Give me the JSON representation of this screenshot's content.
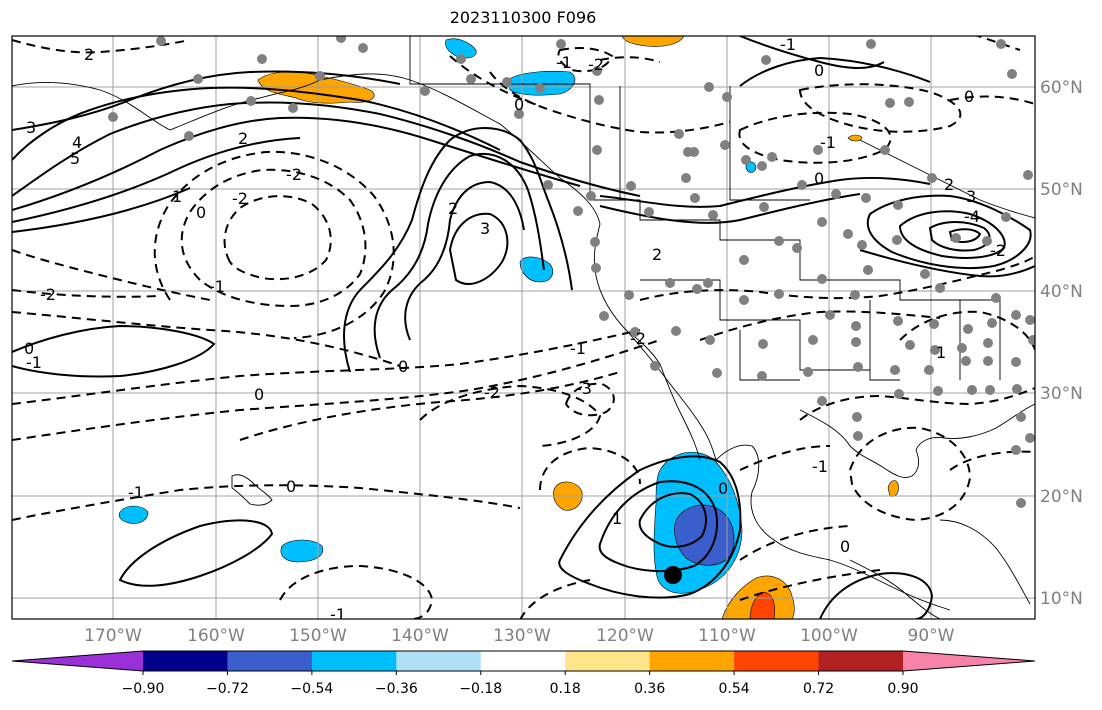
{
  "title": "2023110300 F096",
  "map": {
    "lon_labels": [
      "170°W",
      "160°W",
      "150°W",
      "140°W",
      "130°W",
      "120°W",
      "110°W",
      "100°W",
      "90°W"
    ],
    "lat_labels": [
      "60°N",
      "50°N",
      "40°N",
      "30°N",
      "20°N",
      "10°N"
    ],
    "contour_labels": [
      "2",
      "-2",
      "3",
      "4",
      "5",
      "2",
      "1",
      "0",
      "-2",
      "-2",
      "2",
      "3",
      "-1",
      "-2",
      "0",
      "-1",
      "0",
      "0",
      "-2",
      "-3",
      "-1",
      "-1",
      "-2",
      "-1",
      "0",
      "-1",
      "0",
      "2",
      "3",
      "-4",
      "-2",
      "0",
      "-1",
      "2",
      "0",
      "1",
      "0",
      "-1",
      "1",
      "0",
      "-1",
      "0"
    ],
    "colors": {
      "positive_1": "#ffe68a",
      "positive_2": "#ffa500",
      "positive_3": "#ff4500",
      "negative_1": "#b0e0f5",
      "negative_2": "#00bfff",
      "negative_3": "#3a5fcd"
    }
  },
  "colorbar": {
    "ticks": [
      "−0.90",
      "−0.72",
      "−0.54",
      "−0.36",
      "−0.18",
      "0.18",
      "0.36",
      "0.54",
      "0.72",
      "0.90"
    ],
    "colors": [
      "#9b30d8",
      "#00008b",
      "#3a5fcd",
      "#00bfff",
      "#b0e0f5",
      "#ffffff",
      "#ffe68a",
      "#ffa500",
      "#ff4500",
      "#b22222",
      "#f784a8"
    ]
  }
}
